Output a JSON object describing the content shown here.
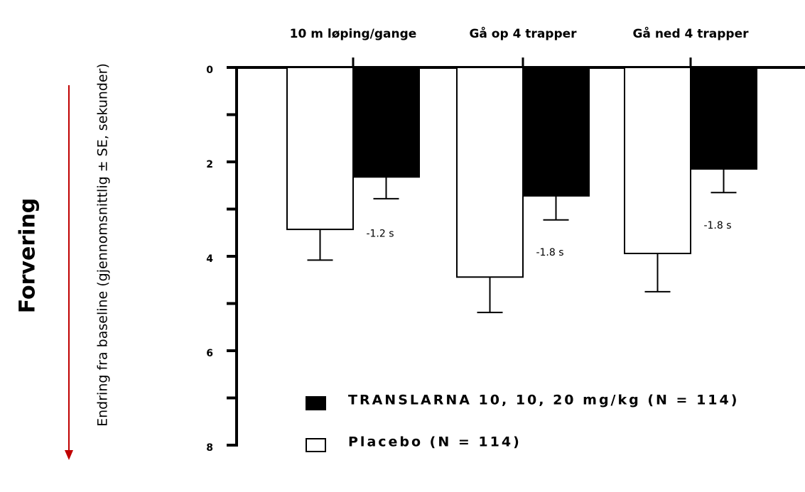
{
  "chart_data": {
    "type": "bar",
    "ylabel": "Endring fra baseline (gjennomsnittlig ± SE, sekunder)",
    "direction_label": "Forvering",
    "categories": [
      "10 m løping/gange",
      "Gå op 4 trapper",
      "Gå ned 4 trapper"
    ],
    "series": [
      {
        "name": "Placebo (N = 114)",
        "color": "#ffffff",
        "values": [
          3.43,
          4.44,
          3.94
        ],
        "errors": [
          0.65,
          0.75,
          0.81
        ]
      },
      {
        "name": "TRANSLARNA 10, 10, 20 mg/kg (N = 114)",
        "color": "#000000",
        "values": [
          2.32,
          2.72,
          2.15
        ],
        "errors": [
          0.46,
          0.51,
          0.5
        ]
      }
    ],
    "annotations": [
      "-1.2 s",
      "-1.8 s",
      "-1.8 s"
    ],
    "ylim": [
      0,
      8
    ],
    "yticks": [
      0,
      2,
      4,
      6,
      8
    ],
    "minor_yticks": [
      1,
      3,
      5,
      7
    ],
    "y_inverted": true,
    "grid": false
  }
}
